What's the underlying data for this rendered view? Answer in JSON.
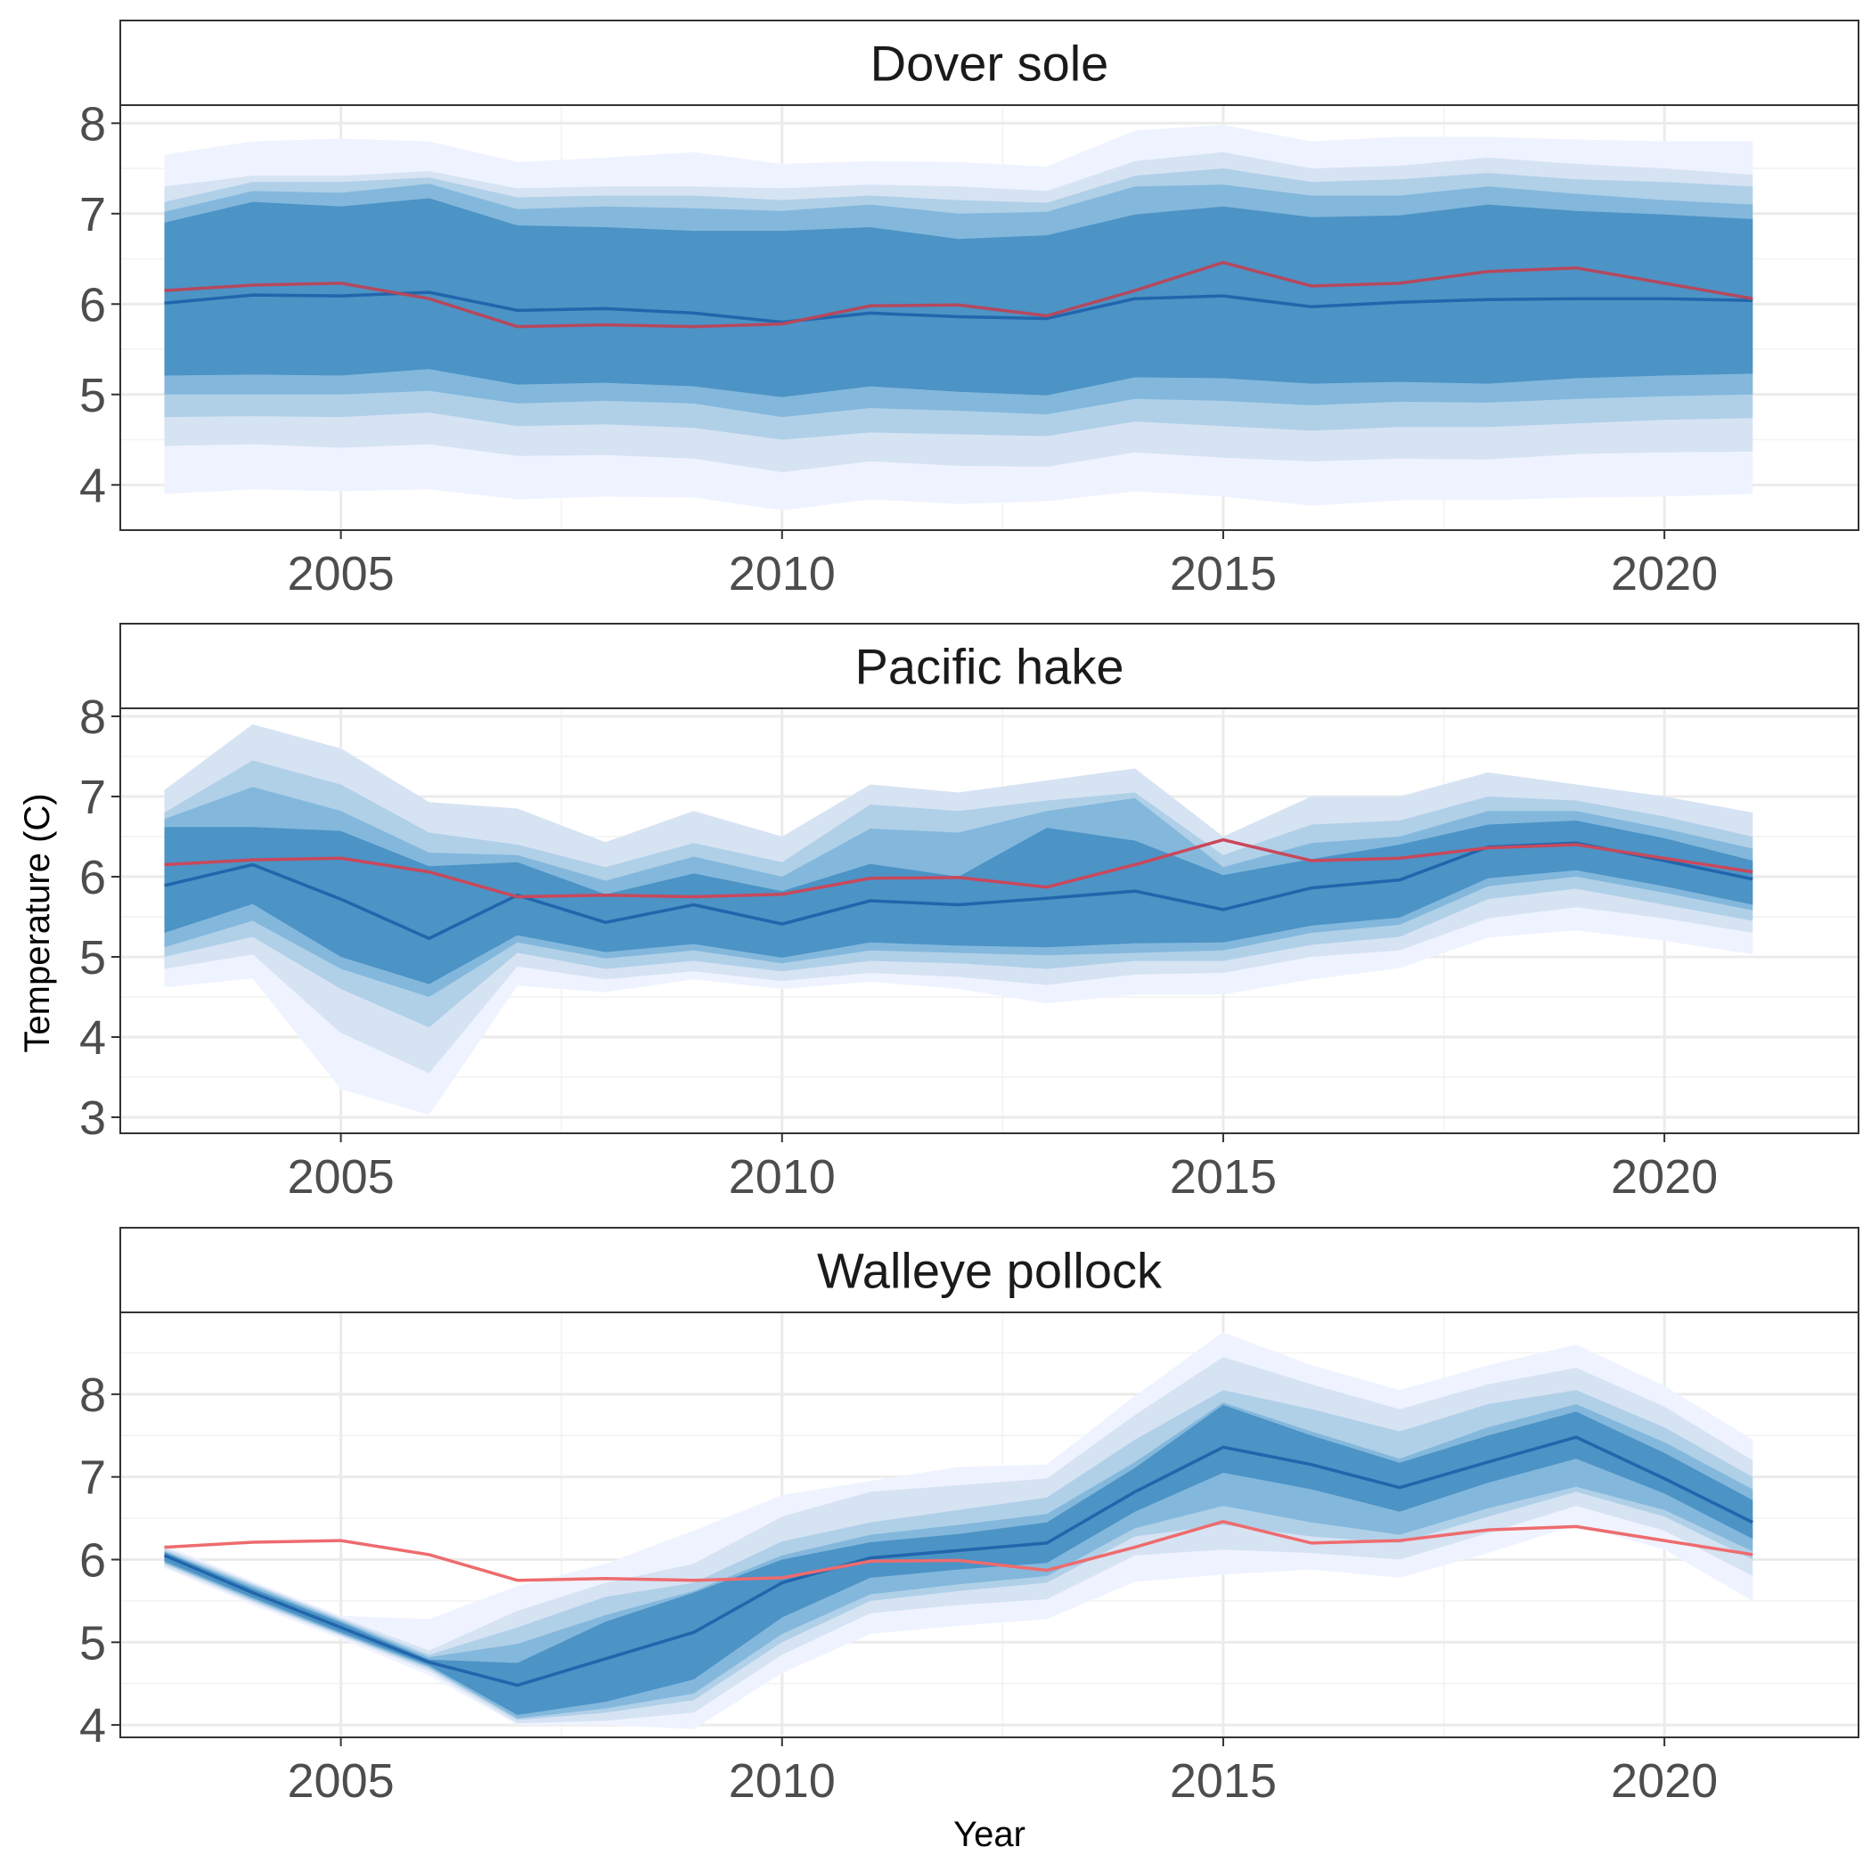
{
  "chart_data": {
    "type": "area",
    "xlabel": "Year",
    "ylabel": "Temperature (C)",
    "xlim": [
      2002.5,
      2022.2
    ],
    "x_ticks": [
      2005,
      2010,
      2015,
      2020
    ],
    "colors": {
      "band_outer": "#eff3ff",
      "band_2": "#d6e3f3",
      "band_3": "#b0d0e8",
      "band_4": "#83b8dc",
      "band_inner": "#4c93c6",
      "median_line": "#2166ac",
      "reference_line": "#ee6b6e"
    },
    "years": [
      2003,
      2004,
      2005,
      2006,
      2007,
      2008,
      2009,
      2010,
      2011,
      2012,
      2013,
      2014,
      2015,
      2016,
      2017,
      2018,
      2019,
      2020,
      2021
    ],
    "panels": [
      {
        "title": "Dover sole",
        "ylim": [
          3.5,
          8.2
        ],
        "y_ticks": [
          4,
          5,
          6,
          7,
          8
        ],
        "reference_line_color": "#b5485d",
        "median": [
          6.01,
          6.1,
          6.09,
          6.13,
          5.93,
          5.95,
          5.9,
          5.8,
          5.9,
          5.86,
          5.84,
          6.06,
          6.09,
          5.97,
          6.02,
          6.05,
          6.06,
          6.06,
          6.04
        ],
        "reference": [
          6.15,
          6.21,
          6.23,
          6.06,
          5.75,
          5.77,
          5.75,
          5.78,
          5.98,
          5.99,
          5.87,
          6.15,
          6.46,
          6.2,
          6.23,
          6.36,
          6.4,
          6.23,
          6.06
        ],
        "bands": [
          {
            "lower": [
              3.9,
              3.95,
              3.93,
              3.95,
              3.84,
              3.87,
              3.86,
              3.72,
              3.84,
              3.79,
              3.82,
              3.93,
              3.87,
              3.77,
              3.83,
              3.83,
              3.86,
              3.87,
              3.9
            ],
            "upper": [
              7.65,
              7.8,
              7.83,
              7.8,
              7.57,
              7.62,
              7.68,
              7.55,
              7.58,
              7.57,
              7.52,
              7.92,
              7.98,
              7.8,
              7.85,
              7.85,
              7.82,
              7.8,
              7.8
            ]
          },
          {
            "lower": [
              4.43,
              4.45,
              4.41,
              4.45,
              4.32,
              4.33,
              4.29,
              4.14,
              4.26,
              4.21,
              4.2,
              4.36,
              4.3,
              4.26,
              4.29,
              4.28,
              4.34,
              4.36,
              4.37
            ],
            "upper": [
              7.3,
              7.42,
              7.42,
              7.47,
              7.28,
              7.3,
              7.3,
              7.28,
              7.32,
              7.3,
              7.25,
              7.58,
              7.68,
              7.5,
              7.53,
              7.62,
              7.55,
              7.5,
              7.43
            ]
          },
          {
            "lower": [
              4.75,
              4.76,
              4.75,
              4.8,
              4.65,
              4.67,
              4.63,
              4.5,
              4.58,
              4.56,
              4.54,
              4.7,
              4.65,
              4.6,
              4.64,
              4.64,
              4.68,
              4.72,
              4.74
            ],
            "upper": [
              7.13,
              7.35,
              7.35,
              7.4,
              7.18,
              7.2,
              7.2,
              7.15,
              7.2,
              7.15,
              7.12,
              7.42,
              7.5,
              7.35,
              7.38,
              7.45,
              7.38,
              7.35,
              7.3
            ]
          },
          {
            "lower": [
              5.0,
              5.0,
              5.0,
              5.04,
              4.9,
              4.93,
              4.9,
              4.75,
              4.85,
              4.82,
              4.78,
              4.95,
              4.93,
              4.88,
              4.92,
              4.91,
              4.95,
              4.98,
              5.0
            ],
            "upper": [
              7.02,
              7.25,
              7.23,
              7.33,
              7.05,
              7.08,
              7.06,
              7.03,
              7.1,
              7.0,
              7.02,
              7.3,
              7.32,
              7.2,
              7.2,
              7.3,
              7.22,
              7.15,
              7.1
            ]
          },
          {
            "lower": [
              5.21,
              5.22,
              5.21,
              5.28,
              5.11,
              5.13,
              5.09,
              4.97,
              5.09,
              5.03,
              4.99,
              5.19,
              5.18,
              5.12,
              5.14,
              5.12,
              5.18,
              5.21,
              5.23
            ],
            "upper": [
              6.9,
              7.13,
              7.08,
              7.17,
              6.87,
              6.85,
              6.81,
              6.81,
              6.85,
              6.72,
              6.76,
              6.99,
              7.08,
              6.96,
              6.98,
              7.1,
              7.03,
              6.99,
              6.94
            ]
          }
        ]
      },
      {
        "title": "Pacific hake",
        "ylim": [
          2.8,
          8.1
        ],
        "y_ticks": [
          3,
          4,
          5,
          6,
          7,
          8
        ],
        "reference_line_color": "#c9485b",
        "median": [
          5.89,
          6.15,
          5.72,
          5.23,
          5.77,
          5.43,
          5.65,
          5.41,
          5.7,
          5.65,
          5.73,
          5.82,
          5.59,
          5.86,
          5.96,
          6.37,
          6.42,
          6.2,
          5.97
        ],
        "reference": [
          6.15,
          6.21,
          6.23,
          6.06,
          5.75,
          5.77,
          5.75,
          5.78,
          5.98,
          5.99,
          5.87,
          6.15,
          6.46,
          6.2,
          6.23,
          6.36,
          6.4,
          6.23,
          6.06
        ],
        "bands": [
          {
            "lower": [
              4.62,
              4.73,
              3.35,
              3.03,
              4.64,
              4.56,
              4.72,
              4.6,
              4.69,
              4.6,
              4.42,
              4.53,
              4.53,
              4.72,
              4.86,
              5.24,
              5.33,
              5.2,
              5.03
            ],
            "upper": [
              7.08,
              7.9,
              7.6,
              6.93,
              6.85,
              6.43,
              6.82,
              6.5,
              7.15,
              7.05,
              7.2,
              7.35,
              6.5,
              7.0,
              7.0,
              7.3,
              7.15,
              7.0,
              6.8
            ]
          },
          {
            "lower": [
              4.85,
              5.03,
              4.05,
              3.55,
              4.88,
              4.72,
              4.82,
              4.7,
              4.8,
              4.75,
              4.65,
              4.78,
              4.8,
              5.0,
              5.08,
              5.48,
              5.62,
              5.48,
              5.3
            ]
          },
          {
            "lower": [
              5.0,
              5.25,
              4.6,
              4.12,
              5.05,
              4.85,
              4.95,
              4.82,
              4.95,
              4.92,
              4.85,
              4.95,
              4.95,
              5.15,
              5.25,
              5.72,
              5.85,
              5.65,
              5.45
            ],
            "upper": [
              6.8,
              7.45,
              7.15,
              6.55,
              6.4,
              6.12,
              6.42,
              6.18,
              6.9,
              6.82,
              6.95,
              7.05,
              6.27,
              6.65,
              6.7,
              7.0,
              6.95,
              6.75,
              6.5
            ]
          },
          {
            "lower": [
              5.12,
              5.45,
              4.85,
              4.5,
              5.18,
              4.98,
              5.08,
              4.92,
              5.08,
              5.05,
              5.02,
              5.05,
              5.08,
              5.3,
              5.4,
              5.88,
              6.0,
              5.8,
              5.58
            ],
            "upper": [
              6.72,
              7.12,
              6.82,
              6.3,
              6.27,
              5.95,
              6.25,
              6.0,
              6.6,
              6.55,
              6.82,
              6.98,
              6.12,
              6.42,
              6.5,
              6.82,
              6.82,
              6.6,
              6.35
            ]
          },
          {
            "lower": [
              5.3,
              5.66,
              5.0,
              4.66,
              5.27,
              5.06,
              5.16,
              4.99,
              5.18,
              5.14,
              5.12,
              5.17,
              5.18,
              5.39,
              5.49,
              5.98,
              6.08,
              5.88,
              5.65
            ],
            "upper": [
              6.62,
              6.62,
              6.57,
              6.13,
              6.18,
              5.78,
              6.04,
              5.82,
              6.16,
              6.0,
              6.61,
              6.45,
              6.02,
              6.22,
              6.4,
              6.65,
              6.7,
              6.48,
              6.2
            ]
          }
        ]
      },
      {
        "title": "Walleye pollock",
        "ylim": [
          3.85,
          8.99
        ],
        "y_ticks": [
          4,
          5,
          6,
          7,
          8
        ],
        "reference_line_color": "#ee6b6e",
        "median": [
          6.05,
          5.6,
          5.18,
          4.76,
          4.48,
          4.8,
          5.12,
          5.72,
          6.02,
          6.11,
          6.2,
          6.82,
          7.36,
          7.15,
          6.87,
          7.18,
          7.48,
          6.98,
          6.45
        ],
        "reference": [
          6.15,
          6.21,
          6.23,
          6.06,
          5.75,
          5.77,
          5.75,
          5.78,
          5.98,
          5.99,
          5.87,
          6.15,
          6.46,
          6.2,
          6.23,
          6.36,
          6.4,
          6.23,
          6.06
        ],
        "bands": [
          {
            "lower": [
              5.9,
              5.45,
              5.04,
              4.6,
              4.0,
              4.0,
              3.95,
              4.63,
              5.1,
              5.2,
              5.28,
              5.73,
              5.82,
              5.88,
              5.78,
              6.08,
              6.42,
              6.12,
              5.5
            ],
            "upper": [
              6.18,
              5.74,
              5.32,
              5.28,
              5.68,
              5.95,
              6.35,
              6.78,
              6.95,
              7.12,
              7.15,
              7.98,
              8.75,
              8.35,
              8.05,
              8.35,
              8.6,
              8.1,
              7.45
            ]
          },
          {
            "lower": [
              5.92,
              5.48,
              5.07,
              4.65,
              4.02,
              4.05,
              4.15,
              4.85,
              5.35,
              5.45,
              5.52,
              6.05,
              6.12,
              6.08,
              6.0,
              6.32,
              6.65,
              6.35,
              5.8
            ],
            "upper": [
              6.15,
              5.72,
              5.3,
              4.9,
              5.38,
              5.72,
              5.95,
              6.52,
              6.82,
              6.9,
              6.98,
              7.75,
              8.45,
              8.12,
              7.82,
              8.12,
              8.32,
              7.85,
              7.2
            ]
          },
          {
            "lower": [
              5.95,
              5.5,
              5.09,
              4.68,
              4.06,
              4.15,
              4.3,
              5.0,
              5.5,
              5.62,
              5.72,
              6.28,
              6.42,
              6.28,
              6.2,
              6.52,
              6.82,
              6.52,
              6.0
            ],
            "upper": [
              6.12,
              5.7,
              5.28,
              4.85,
              5.18,
              5.55,
              5.72,
              6.22,
              6.45,
              6.6,
              6.75,
              7.45,
              8.05,
              7.82,
              7.55,
              7.88,
              8.05,
              7.6,
              7.0
            ]
          },
          {
            "lower": [
              5.96,
              5.52,
              5.1,
              4.7,
              4.08,
              4.2,
              4.38,
              5.1,
              5.58,
              5.7,
              5.8,
              6.38,
              6.65,
              6.45,
              6.3,
              6.62,
              6.88,
              6.6,
              6.1
            ],
            "upper": [
              6.1,
              5.68,
              5.26,
              4.82,
              4.98,
              5.33,
              5.62,
              6.05,
              6.3,
              6.42,
              6.55,
              7.18,
              7.9,
              7.55,
              7.22,
              7.6,
              7.88,
              7.42,
              6.85
            ]
          },
          {
            "lower": [
              5.98,
              5.54,
              5.12,
              4.72,
              4.12,
              4.28,
              4.55,
              5.3,
              5.78,
              5.88,
              5.96,
              6.58,
              7.05,
              6.85,
              6.58,
              6.93,
              7.22,
              6.8,
              6.25
            ],
            "upper": [
              6.09,
              5.65,
              5.24,
              4.79,
              4.75,
              5.25,
              5.6,
              6.0,
              6.21,
              6.31,
              6.45,
              7.11,
              7.87,
              7.5,
              7.17,
              7.5,
              7.79,
              7.29,
              6.72
            ]
          }
        ]
      }
    ]
  }
}
